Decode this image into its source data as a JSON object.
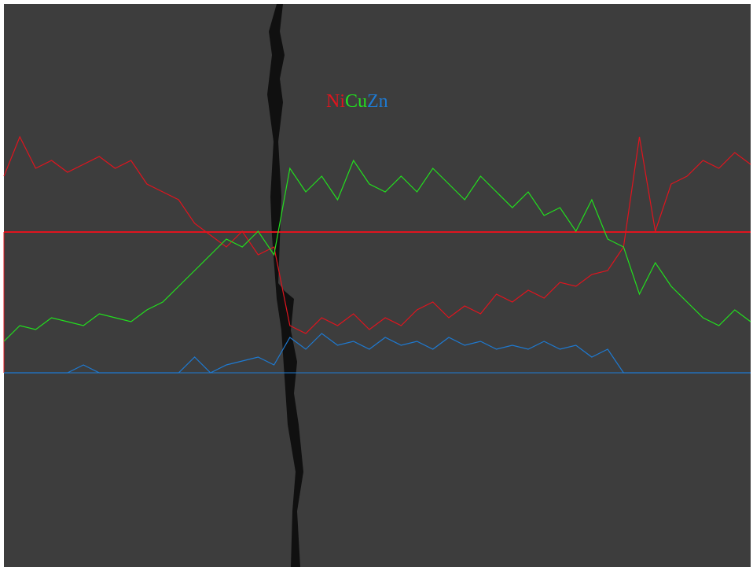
{
  "chart_data": {
    "type": "line",
    "series": [
      {
        "name": "Ni",
        "color": "#e0141e",
        "values": [
          250,
          300,
          260,
          270,
          255,
          265,
          275,
          260,
          270,
          240,
          230,
          220,
          190,
          175,
          160,
          180,
          150,
          160,
          60,
          50,
          70,
          60,
          75,
          55,
          70,
          60,
          80,
          90,
          70,
          85,
          75,
          100,
          90,
          105,
          95,
          115,
          110,
          125,
          130,
          160,
          300,
          180,
          240,
          250,
          270,
          260,
          280,
          265
        ]
      },
      {
        "name": "Cu",
        "color": "#22e01e",
        "values": [
          40,
          60,
          55,
          70,
          65,
          60,
          75,
          70,
          65,
          80,
          90,
          110,
          130,
          150,
          170,
          160,
          180,
          150,
          260,
          230,
          250,
          220,
          270,
          240,
          230,
          250,
          230,
          260,
          240,
          220,
          250,
          230,
          210,
          230,
          200,
          210,
          180,
          220,
          170,
          160,
          100,
          140,
          110,
          90,
          70,
          60,
          80,
          65
        ]
      },
      {
        "name": "Zn",
        "color": "#1e7ad2",
        "values": [
          0,
          0,
          0,
          0,
          0,
          10,
          0,
          0,
          0,
          0,
          0,
          0,
          20,
          0,
          10,
          15,
          20,
          10,
          45,
          30,
          50,
          35,
          40,
          30,
          45,
          35,
          40,
          30,
          45,
          35,
          40,
          30,
          35,
          30,
          40,
          30,
          35,
          20,
          30,
          0,
          0,
          0,
          0,
          0,
          0,
          0,
          0,
          0
        ]
      }
    ]
  }
}
